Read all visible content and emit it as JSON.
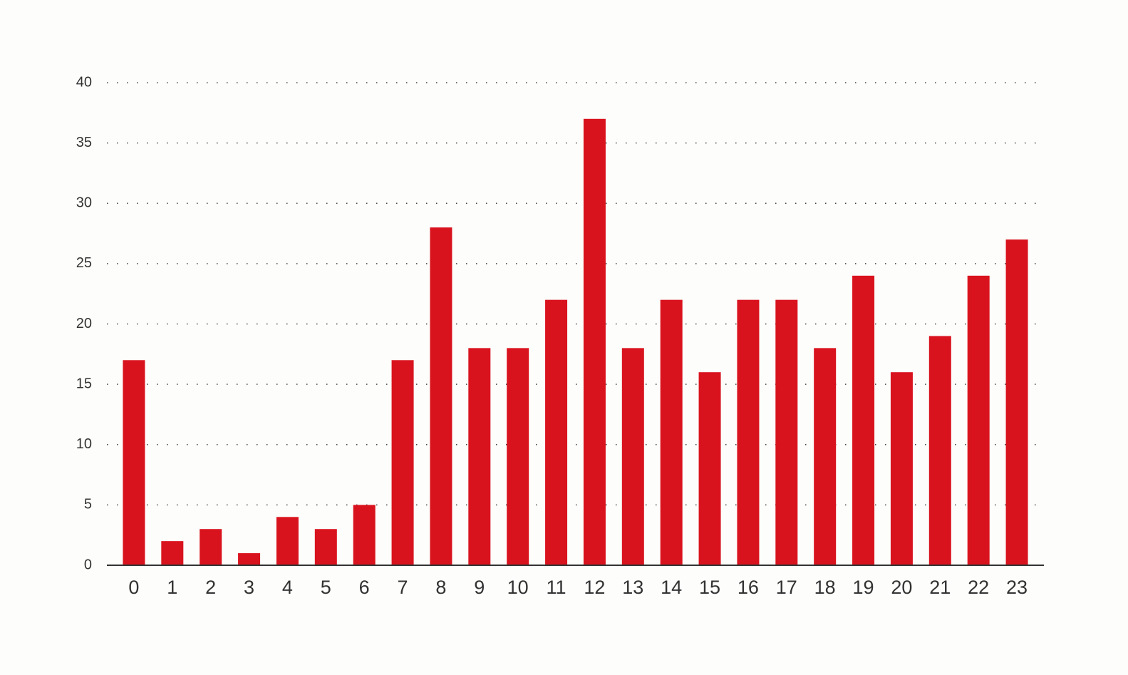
{
  "chart_data": {
    "type": "bar",
    "categories": [
      "0",
      "1",
      "2",
      "3",
      "4",
      "5",
      "6",
      "7",
      "8",
      "9",
      "10",
      "11",
      "12",
      "13",
      "14",
      "15",
      "16",
      "17",
      "18",
      "19",
      "20",
      "21",
      "22",
      "23"
    ],
    "values": [
      17,
      2,
      3,
      1,
      4,
      3,
      5,
      17,
      28,
      18,
      18,
      22,
      37,
      18,
      22,
      16,
      22,
      22,
      18,
      24,
      16,
      19,
      24,
      27
    ],
    "color": "#d9131e",
    "ylim": [
      0,
      40
    ],
    "yticks": [
      0,
      5,
      10,
      15,
      20,
      25,
      30,
      35,
      40
    ],
    "grid": true
  }
}
